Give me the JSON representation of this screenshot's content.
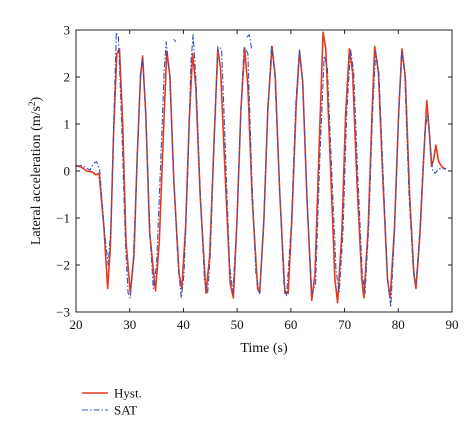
{
  "chart_data": {
    "type": "line",
    "title": "",
    "xlabel": "Time (s)",
    "ylabel_main": "Lateral acceleration (m/s",
    "ylabel_sup": "2",
    "ylabel_end": ")",
    "xlim": [
      20,
      90
    ],
    "ylim": [
      -3,
      3
    ],
    "xticks": [
      20,
      30,
      40,
      50,
      60,
      70,
      80,
      90
    ],
    "yticks": [
      -3,
      -2,
      -1,
      0,
      1,
      2,
      3
    ],
    "grid": false,
    "legend_position": "bottom-left-outside",
    "series": [
      {
        "name": "Hyst.",
        "color": "#e8381e",
        "style": "solid",
        "points": [
          [
            20,
            0.12
          ],
          [
            21,
            0.08
          ],
          [
            22,
            0.0
          ],
          [
            23,
            -0.02
          ],
          [
            23.7,
            -0.08
          ],
          [
            24.3,
            -0.05
          ],
          [
            25.2,
            -1.2
          ],
          [
            25.9,
            -2.5
          ],
          [
            26.4,
            -1.6
          ],
          [
            27,
            0.8
          ],
          [
            27.6,
            2.5
          ],
          [
            28.1,
            2.6
          ],
          [
            28.7,
            1.0
          ],
          [
            29.3,
            -1.5
          ],
          [
            30.1,
            -2.6
          ],
          [
            30.8,
            -1.8
          ],
          [
            31.4,
            0.3
          ],
          [
            32,
            2.0
          ],
          [
            32.4,
            2.45
          ],
          [
            33,
            1.2
          ],
          [
            33.7,
            -1.3
          ],
          [
            34.8,
            -2.55
          ],
          [
            35.5,
            -1.5
          ],
          [
            36.3,
            0.9
          ],
          [
            36.9,
            2.55
          ],
          [
            37.5,
            2.0
          ],
          [
            38.2,
            -0.2
          ],
          [
            39.2,
            -2.2
          ],
          [
            39.7,
            -2.5
          ],
          [
            40.4,
            -1.2
          ],
          [
            41.1,
            1.1
          ],
          [
            41.7,
            2.5
          ],
          [
            42.3,
            1.8
          ],
          [
            43.1,
            -0.5
          ],
          [
            44.2,
            -2.6
          ],
          [
            44.9,
            -1.8
          ],
          [
            45.7,
            0.6
          ],
          [
            46.4,
            2.6
          ],
          [
            46.9,
            2.2
          ],
          [
            47.7,
            0.1
          ],
          [
            48.7,
            -2.4
          ],
          [
            49.3,
            -2.7
          ],
          [
            50,
            -1.0
          ],
          [
            50.7,
            1.3
          ],
          [
            51.4,
            2.6
          ],
          [
            52,
            1.8
          ],
          [
            52.8,
            -0.6
          ],
          [
            53.8,
            -2.5
          ],
          [
            54.2,
            -2.6
          ],
          [
            55,
            -1.0
          ],
          [
            55.7,
            1.3
          ],
          [
            56.5,
            2.65
          ],
          [
            57.1,
            2.0
          ],
          [
            57.9,
            -0.4
          ],
          [
            58.9,
            -2.6
          ],
          [
            59.5,
            -2.6
          ],
          [
            60.2,
            -1.0
          ],
          [
            61,
            1.4
          ],
          [
            61.6,
            2.55
          ],
          [
            62.2,
            1.9
          ],
          [
            63,
            -0.6
          ],
          [
            63.9,
            -2.75
          ],
          [
            64.5,
            -2.2
          ],
          [
            65.2,
            0.3
          ],
          [
            66,
            2.95
          ],
          [
            66.5,
            2.6
          ],
          [
            67.3,
            0.3
          ],
          [
            68.2,
            -2.3
          ],
          [
            68.7,
            -2.8
          ],
          [
            69.5,
            -1.3
          ],
          [
            70.2,
            1.2
          ],
          [
            70.9,
            2.6
          ],
          [
            71.5,
            2.1
          ],
          [
            72.3,
            -0.2
          ],
          [
            73.2,
            -2.3
          ],
          [
            73.6,
            -2.7
          ],
          [
            74.4,
            -1.2
          ],
          [
            75.1,
            1.2
          ],
          [
            75.6,
            2.65
          ],
          [
            76.3,
            2.1
          ],
          [
            77.1,
            -0.1
          ],
          [
            78,
            -2.3
          ],
          [
            78.5,
            -2.7
          ],
          [
            79.3,
            -1.2
          ],
          [
            80.1,
            1.3
          ],
          [
            80.7,
            2.6
          ],
          [
            81.3,
            2.0
          ],
          [
            82.1,
            -0.5
          ],
          [
            82.9,
            -2.2
          ],
          [
            83.3,
            -2.5
          ],
          [
            84,
            -1.4
          ],
          [
            84.7,
            0.2
          ],
          [
            85.3,
            1.5
          ],
          [
            85.8,
            0.8
          ],
          [
            86.2,
            0.1
          ],
          [
            86.6,
            0.25
          ],
          [
            87,
            0.55
          ],
          [
            87.5,
            0.2
          ],
          [
            88.2,
            0.08
          ],
          [
            88.8,
            0.04
          ]
        ]
      },
      {
        "name": "SAT",
        "color": "#3456b4",
        "style": "dashdot",
        "points": [
          [
            20,
            0.1
          ],
          [
            21,
            0.12
          ],
          [
            22,
            0.06
          ],
          [
            22.6,
            0.02
          ],
          [
            23.2,
            0.15
          ],
          [
            23.8,
            0.2
          ],
          [
            24.4,
            0.05
          ],
          [
            25.3,
            -1.3
          ],
          [
            26,
            -2.0
          ],
          [
            26.5,
            -1.2
          ],
          [
            27.1,
            1.3
          ],
          [
            27.5,
            2.95
          ],
          [
            27.9,
            2.85
          ],
          [
            28.5,
            1.0
          ],
          [
            29.2,
            -1.5
          ],
          [
            29.7,
            -2.6
          ],
          [
            30.1,
            -2.7
          ],
          [
            30.7,
            -1.8
          ],
          [
            31.4,
            0.3
          ],
          [
            32,
            2.1
          ],
          [
            32.4,
            2.4
          ],
          [
            33,
            1.2
          ],
          [
            33.8,
            -1.4
          ],
          [
            34.4,
            -2.5
          ],
          [
            35,
            -2.0
          ],
          [
            35.8,
            0.3
          ],
          [
            36.4,
            2.1
          ],
          [
            36.8,
            2.75
          ],
          [
            37.4,
            2.1
          ],
          [
            38.2,
            -0.2
          ],
          [
            39,
            -2.0
          ],
          [
            39.6,
            -2.7
          ],
          [
            40.1,
            -2.2
          ],
          [
            40.8,
            -0.1
          ],
          [
            41.4,
            2.3
          ],
          [
            41.8,
            2.9
          ],
          [
            42.3,
            2.0
          ],
          [
            43.2,
            -0.6
          ],
          [
            43.9,
            -2.3
          ],
          [
            44.5,
            -2.6
          ],
          [
            45,
            -1.8
          ],
          [
            45.7,
            0.6
          ],
          [
            46.4,
            2.65
          ],
          [
            47.1,
            2.6
          ],
          [
            47.8,
            0.5
          ],
          [
            48.6,
            -2.0
          ],
          [
            49.2,
            -2.6
          ],
          [
            49.9,
            -1.2
          ],
          [
            50.7,
            1.3
          ],
          [
            51.3,
            2.65
          ],
          [
            52,
            2.5
          ],
          [
            52.7,
            0.0
          ],
          [
            53.5,
            -2.2
          ],
          [
            54.2,
            -2.6
          ],
          [
            54.9,
            -1.2
          ],
          [
            55.7,
            1.3
          ],
          [
            56.4,
            2.65
          ],
          [
            57,
            2.1
          ],
          [
            57.9,
            -0.4
          ],
          [
            58.7,
            -2.4
          ],
          [
            59.2,
            -2.65
          ],
          [
            60.1,
            -1.1
          ],
          [
            60.9,
            1.4
          ],
          [
            61.6,
            2.6
          ],
          [
            62.2,
            1.9
          ],
          [
            63,
            -0.6
          ],
          [
            63.9,
            -2.6
          ],
          [
            64.6,
            -2.4
          ],
          [
            65.4,
            0.3
          ],
          [
            66.2,
            2.45
          ],
          [
            66.8,
            2.2
          ],
          [
            67.5,
            0.3
          ],
          [
            68.4,
            -2.1
          ],
          [
            69,
            -2.6
          ],
          [
            69.7,
            -1.3
          ],
          [
            70.4,
            1.2
          ],
          [
            71.1,
            2.6
          ],
          [
            71.7,
            2.1
          ],
          [
            72.5,
            -0.2
          ],
          [
            73.3,
            -2.2
          ],
          [
            73.8,
            -2.6
          ],
          [
            74.5,
            -1.2
          ],
          [
            75.2,
            1.2
          ],
          [
            75.8,
            2.55
          ],
          [
            76.4,
            2.1
          ],
          [
            77.2,
            -0.1
          ],
          [
            78,
            -2.3
          ],
          [
            78.6,
            -2.9
          ],
          [
            79.3,
            -1.3
          ],
          [
            80.1,
            1.3
          ],
          [
            80.6,
            2.55
          ],
          [
            81.2,
            2.1
          ],
          [
            82,
            -0.5
          ],
          [
            82.8,
            -2.1
          ],
          [
            83.3,
            -2.4
          ],
          [
            84,
            -1.3
          ],
          [
            84.6,
            0.1
          ],
          [
            85,
            0.9
          ],
          [
            85.5,
            1.2
          ],
          [
            86,
            0.5
          ],
          [
            86.4,
            0.0
          ],
          [
            86.9,
            -0.05
          ],
          [
            87.5,
            0.05
          ],
          [
            88.3,
            0.05
          ],
          [
            88.9,
            0.05
          ]
        ]
      },
      {
        "name": "SAT",
        "color": "#3456b4",
        "style": "dashdot",
        "points": [
          [
            38.2,
            2.8
          ],
          [
            38.6,
            2.75
          ]
        ]
      },
      {
        "name": "SAT",
        "color": "#3456b4",
        "style": "dashdot",
        "points": [
          [
            51.8,
            2.85
          ],
          [
            52.3,
            2.9
          ],
          [
            52.7,
            2.6
          ]
        ]
      }
    ],
    "legend": [
      {
        "name": "Hyst.",
        "color": "#e8381e",
        "style": "solid"
      },
      {
        "name": "SAT",
        "color": "#3456b4",
        "style": "dashdot"
      }
    ]
  }
}
